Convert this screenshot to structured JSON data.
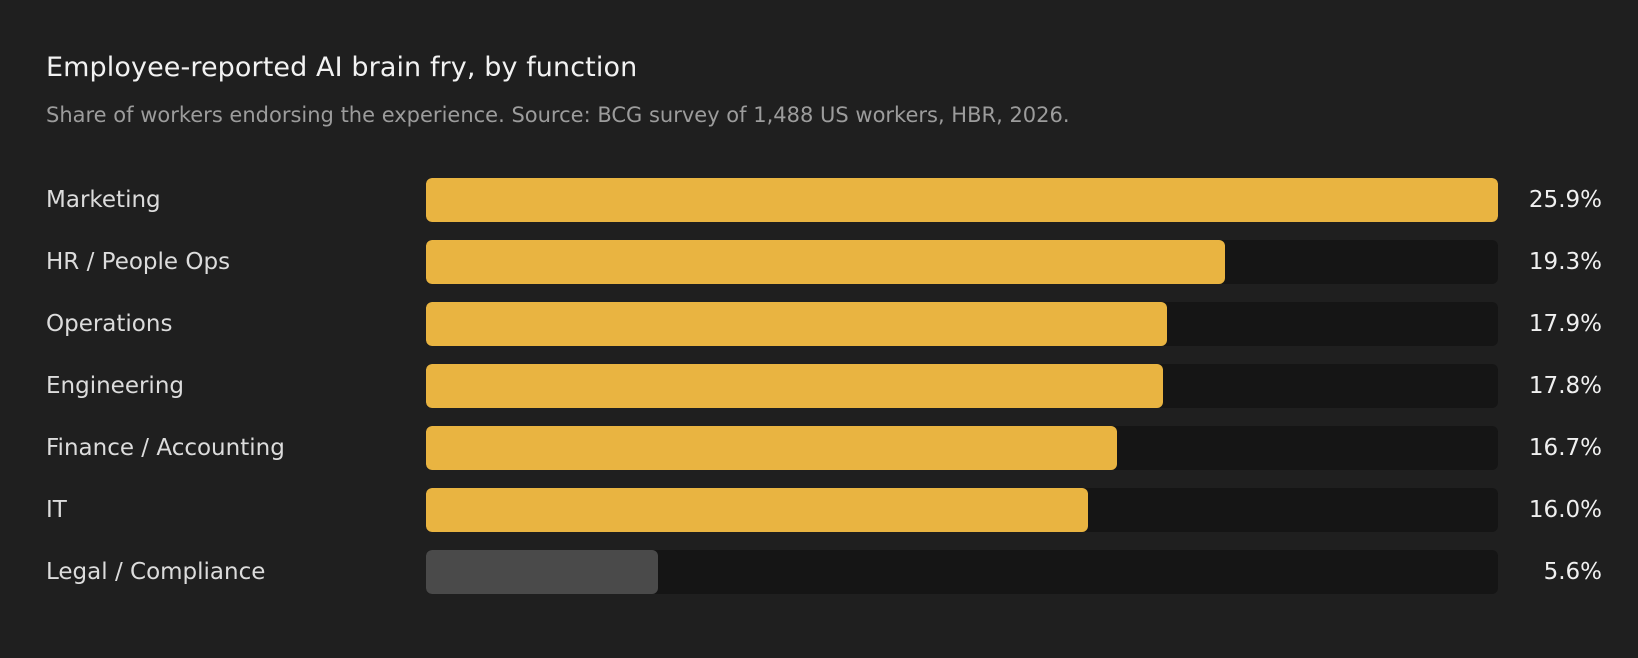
{
  "chart_data": {
    "type": "bar",
    "orientation": "horizontal",
    "title": "Employee-reported AI brain fry, by function",
    "subtitle": "Share of workers endorsing the experience. Source: BCG survey of 1,488 US workers, HBR, 2026.",
    "categories": [
      "Marketing",
      "HR / People Ops",
      "Operations",
      "Engineering",
      "Finance / Accounting",
      "IT",
      "Legal / Compliance"
    ],
    "values": [
      25.9,
      19.3,
      17.9,
      17.8,
      16.7,
      16.0,
      5.6
    ],
    "value_labels": [
      "25.9%",
      "19.3%",
      "17.9%",
      "17.8%",
      "16.7%",
      "16.0%",
      "5.6%"
    ],
    "unit": "%",
    "xlim": [
      0,
      25.9
    ],
    "grid": false,
    "colors": {
      "background": "#1f1f1f",
      "track": "#151515",
      "highlight": "#e9b441",
      "muted": "#4a4a4a"
    },
    "bar_colors": [
      "highlight",
      "highlight",
      "highlight",
      "highlight",
      "highlight",
      "highlight",
      "muted"
    ]
  }
}
